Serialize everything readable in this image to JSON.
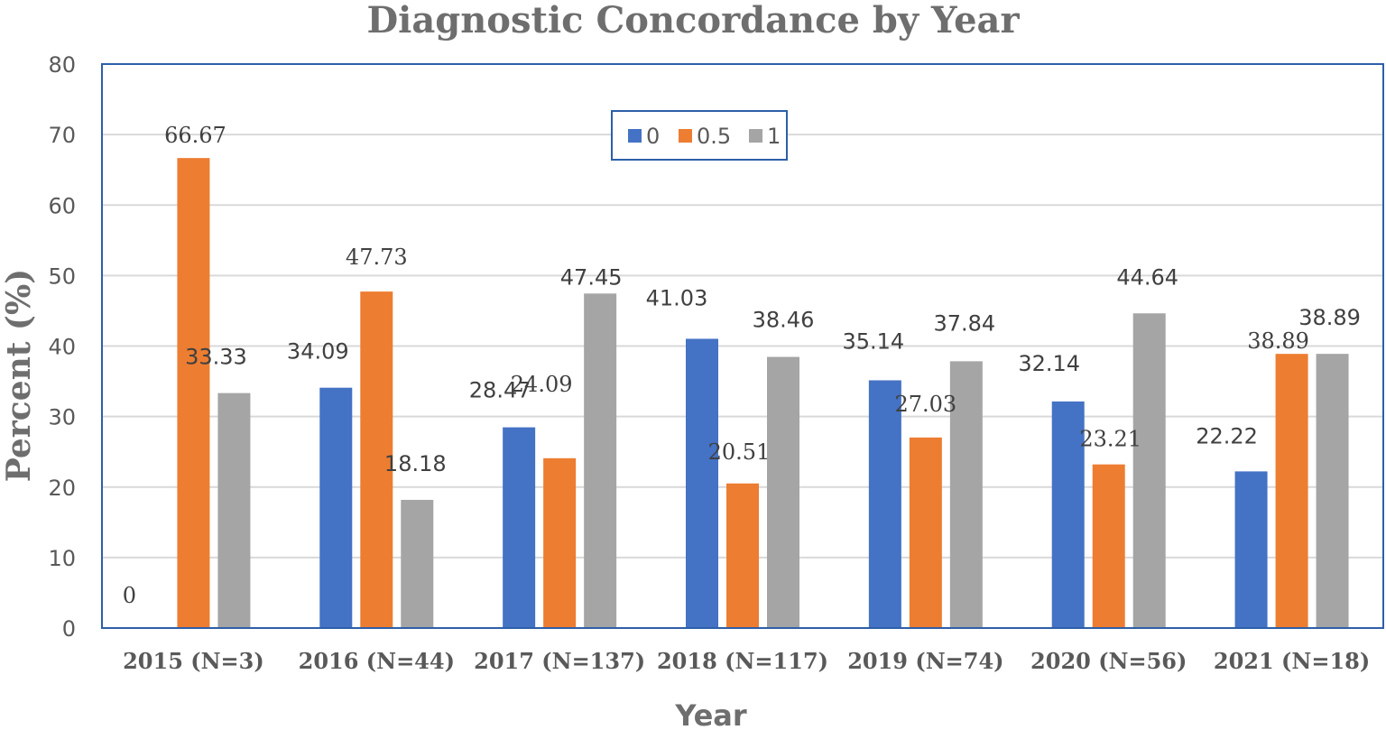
{
  "chart_data": {
    "type": "bar",
    "title": "Diagnostic Concordance by Year",
    "xlabel": "Year",
    "ylabel": "Percent (%)",
    "categories": [
      "2015 (N=3)",
      "2016 (N=44)",
      "2017 (N=137)",
      "2018 (N=117)",
      "2019 (N=74)",
      "2020 (N=56)",
      "2021 (N=18)"
    ],
    "series": [
      {
        "name": "0",
        "color": "#4472c4",
        "values": [
          0,
          34.09,
          28.47,
          41.03,
          35.14,
          32.14,
          22.22
        ],
        "labels": [
          "0",
          "34.09",
          "28.47",
          "41.03",
          "35.14",
          "32.14",
          "22.22"
        ]
      },
      {
        "name": "0.5",
        "color": "#ed7d31",
        "values": [
          66.67,
          47.73,
          24.09,
          20.51,
          27.03,
          23.21,
          38.89
        ],
        "labels": [
          "66.67",
          "47.73",
          "24.09",
          "20.51",
          "27.03",
          "23.21",
          "38.89"
        ]
      },
      {
        "name": "1",
        "color": "#a5a5a5",
        "values": [
          33.33,
          18.18,
          47.45,
          38.46,
          37.84,
          44.64,
          38.89
        ],
        "labels": [
          "33.33",
          "18.18",
          "47.45",
          "38.46",
          "37.84",
          "44.64",
          "38.89"
        ]
      }
    ],
    "ylim": [
      0,
      80
    ],
    "yticks": [
      "0",
      "10",
      "20",
      "30",
      "40",
      "50",
      "60",
      "70",
      "80"
    ],
    "grid": true,
    "legend_position": "top-center",
    "frame_color": "#2e5fa8"
  }
}
